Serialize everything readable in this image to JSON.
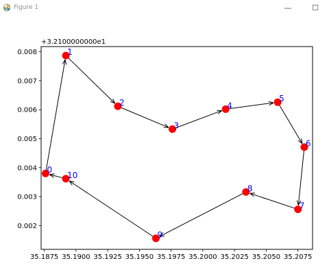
{
  "window": {
    "title": "Figure 1",
    "minimize_glyph": "—",
    "maximize_glyph": "☐",
    "icon": "matplotlib-figure-icon"
  },
  "chart_data": {
    "type": "scatter",
    "title": "",
    "xlabel": "",
    "ylabel": "",
    "y_offset_text": "+3.2100000000e1",
    "xlim": [
      35.18725,
      35.20865
    ],
    "ylim": [
      0.00118,
      0.00818
    ],
    "x_ticks": [
      35.1875,
      35.19,
      35.1925,
      35.195,
      35.1975,
      35.2,
      35.2025,
      35.205,
      35.2075
    ],
    "x_tick_labels": [
      "35.1875",
      "35.1900",
      "35.1925",
      "35.1950",
      "35.1975",
      "35.2000",
      "35.2025",
      "35.2050",
      "35.2075"
    ],
    "y_ticks": [
      0.002,
      0.003,
      0.004,
      0.005,
      0.006,
      0.007,
      0.008
    ],
    "y_tick_labels": [
      "0.002",
      "0.003",
      "0.004",
      "0.005",
      "0.006",
      "0.007",
      "0.008"
    ],
    "grid": false,
    "marker_color": "#ff0000",
    "label_color": "#0000ff",
    "arrow_color": "#000000",
    "points": [
      {
        "label": "0",
        "x": 35.1876,
        "y": 0.0038
      },
      {
        "label": "1",
        "x": 35.1892,
        "y": 0.00787
      },
      {
        "label": "2",
        "x": 35.1933,
        "y": 0.00612
      },
      {
        "label": "3",
        "x": 35.1976,
        "y": 0.00533
      },
      {
        "label": "4",
        "x": 35.2018,
        "y": 0.00602
      },
      {
        "label": "5",
        "x": 35.2059,
        "y": 0.00626
      },
      {
        "label": "6",
        "x": 35.208,
        "y": 0.00471
      },
      {
        "label": "7",
        "x": 35.2075,
        "y": 0.00256
      },
      {
        "label": "8",
        "x": 35.2034,
        "y": 0.00316
      },
      {
        "label": "9",
        "x": 35.1963,
        "y": 0.00156
      },
      {
        "label": "10",
        "x": 35.1892,
        "y": 0.00362
      }
    ],
    "path_order": [
      0,
      1,
      2,
      3,
      4,
      5,
      6,
      7,
      8,
      9,
      10,
      0
    ]
  }
}
